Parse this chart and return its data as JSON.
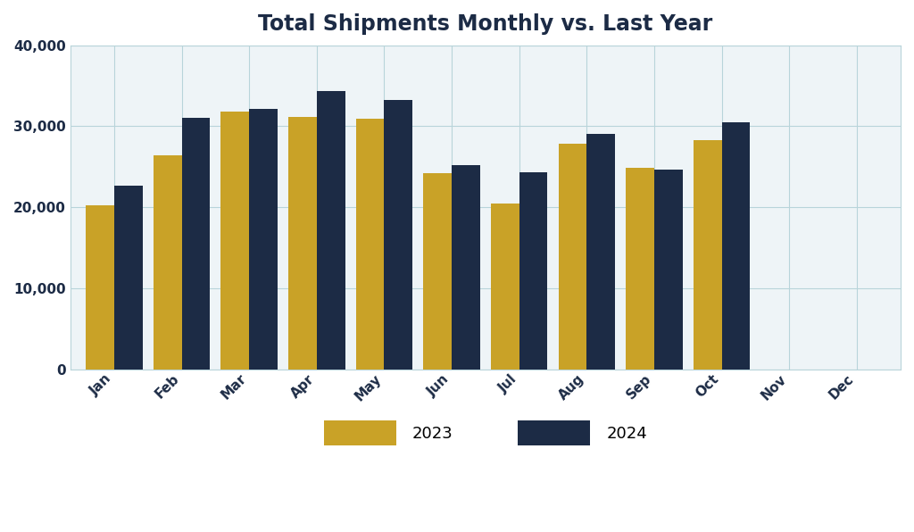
{
  "title": "Total Shipments Monthly vs. Last Year",
  "months": [
    "Jan",
    "Feb",
    "Mar",
    "Apr",
    "May",
    "Jun",
    "Jul",
    "Aug",
    "Sep",
    "Oct",
    "Nov",
    "Dec"
  ],
  "values_2023": [
    20300,
    26400,
    31800,
    31100,
    30900,
    24200,
    20500,
    27900,
    24900,
    28300,
    0,
    0
  ],
  "values_2024": [
    22700,
    31000,
    32100,
    34400,
    33200,
    25200,
    24300,
    29100,
    24700,
    30500,
    0,
    0
  ],
  "color_2023": "#C9A227",
  "color_2024": "#1C2B45",
  "legend_labels": [
    "2023",
    "2024"
  ],
  "ylim": [
    0,
    40000
  ],
  "yticks": [
    0,
    10000,
    20000,
    30000,
    40000
  ],
  "background_color": "#FFFFFF",
  "plot_bg_color": "#EEF4F7",
  "grid_color": "#B8D4DA",
  "title_color": "#1C2B45",
  "title_fontsize": 17,
  "bar_width": 0.42,
  "legend_fontsize": 13,
  "tick_fontsize": 11,
  "tick_color": "#1C2B45",
  "label_rotation": 45
}
